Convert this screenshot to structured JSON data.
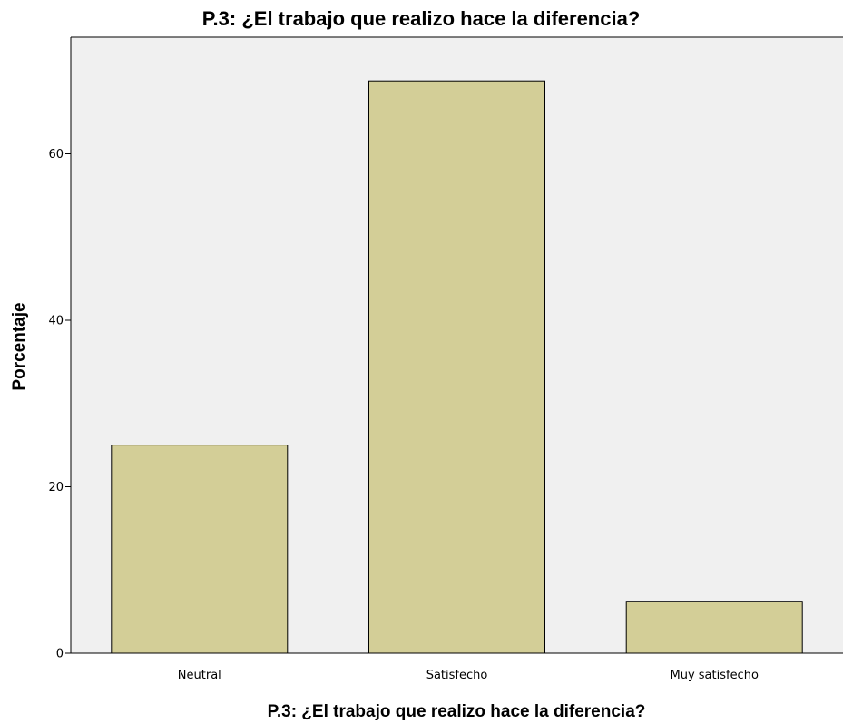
{
  "chart_data": {
    "type": "bar",
    "title": "P.3:  ¿El trabajo que realizo hace la diferencia?",
    "xlabel": "P.3:  ¿El trabajo que realizo hace la diferencia?",
    "ylabel": "Porcentaje",
    "categories": [
      "Neutral",
      "Satisfecho",
      "Muy satisfecho"
    ],
    "values": [
      25.0,
      68.75,
      6.25
    ],
    "ylim": [
      0,
      74
    ],
    "yticks": [
      0,
      20,
      40,
      60
    ],
    "grid": false,
    "legend": "none",
    "colors": {
      "bar_fill": "#d3ce97",
      "bar_stroke": "#000000",
      "plot_background": "#f0f0f0",
      "page_background": "#ffffff",
      "axis_line": "#000000"
    }
  }
}
